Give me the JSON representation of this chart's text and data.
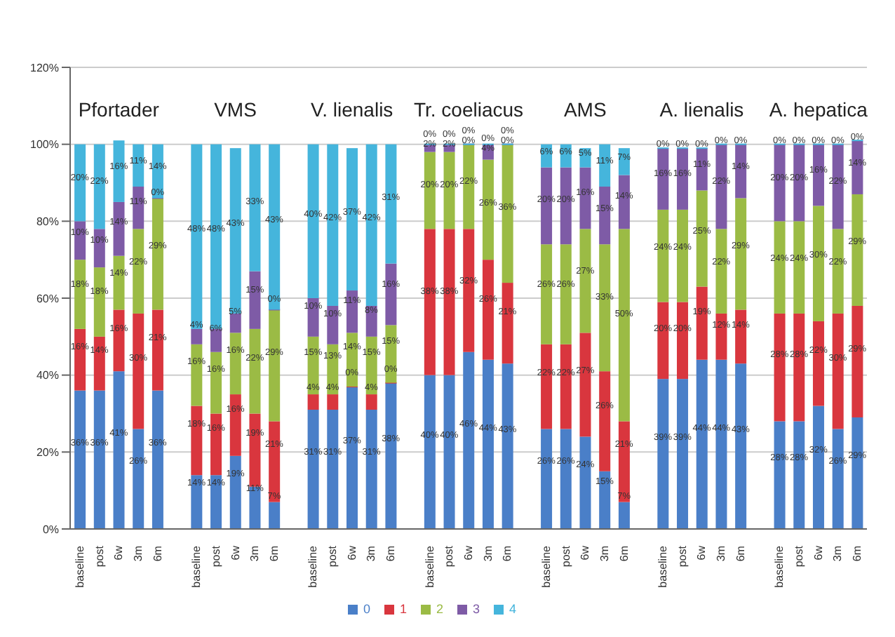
{
  "chart_data": {
    "type": "bar",
    "stacked": true,
    "categories": [
      "baseline",
      "post",
      "6w",
      "3m",
      "6m",
      null,
      "baseline",
      "post",
      "6w",
      "3m",
      "6m",
      null,
      "baseline",
      "post",
      "6w",
      "3m",
      "6m",
      null,
      "baseline",
      "post",
      "6w",
      "3m",
      "6m",
      null,
      "baseline",
      "post",
      "6w",
      "3m",
      "6m",
      null,
      "baseline",
      "post",
      "6w",
      "3m",
      "6m",
      null,
      "baseline",
      "post",
      "6w",
      "3m",
      "6m"
    ],
    "series": [
      {
        "name": "0",
        "color": "#4a7fc8",
        "values": [
          36,
          36,
          41,
          26,
          36,
          null,
          14,
          14,
          19,
          11,
          7,
          null,
          31,
          31,
          37,
          31,
          38,
          null,
          40,
          40,
          46,
          44,
          43,
          null,
          26,
          26,
          24,
          15,
          7,
          null,
          39,
          39,
          44,
          44,
          43,
          null,
          28,
          28,
          32,
          26,
          29
        ],
        "value_labels": [
          "36%",
          "36%",
          "41%",
          "26%",
          "36%",
          null,
          "14%",
          "14%",
          "19%",
          "11%",
          "7%",
          null,
          "31%",
          "31%",
          "37%",
          "31%",
          "38%",
          null,
          "40%",
          "40%",
          "46%",
          "44%",
          "43%",
          null,
          "26%",
          "26%",
          "24%",
          "15%",
          "7%",
          null,
          "39%",
          "39%",
          "44%",
          "44%",
          "43%",
          null,
          "28%",
          "28%",
          "32%",
          "26%",
          "29%"
        ]
      },
      {
        "name": "1",
        "color": "#d9363e",
        "values": [
          16,
          14,
          16,
          30,
          21,
          null,
          18,
          16,
          16,
          19,
          21,
          null,
          4,
          4,
          0,
          4,
          0,
          null,
          38,
          38,
          32,
          26,
          21,
          null,
          22,
          22,
          27,
          26,
          21,
          null,
          20,
          20,
          19,
          12,
          14,
          null,
          28,
          28,
          22,
          30,
          29
        ],
        "value_labels": [
          "16%",
          "14%",
          "16%",
          "30%",
          "21%",
          null,
          "18%",
          "16%",
          "16%",
          "19%",
          "21%",
          null,
          "4%",
          "4%",
          "0%",
          "4%",
          "0%",
          null,
          "38%",
          "38%",
          "32%",
          "26%",
          "21%",
          null,
          "22%",
          "22%",
          "27%",
          "26%",
          "21%",
          null,
          "20%",
          "20%",
          "19%",
          "12%",
          "14%",
          null,
          "28%",
          "28%",
          "22%",
          "30%",
          "29%"
        ]
      },
      {
        "name": "2",
        "color": "#9bbb45",
        "values": [
          18,
          18,
          14,
          22,
          29,
          null,
          16,
          16,
          16,
          22,
          29,
          null,
          15,
          13,
          14,
          15,
          15,
          null,
          20,
          20,
          22,
          26,
          36,
          null,
          26,
          26,
          27,
          33,
          50,
          null,
          24,
          24,
          25,
          22,
          29,
          null,
          24,
          24,
          30,
          22,
          29
        ],
        "value_labels": [
          "18%",
          "18%",
          "14%",
          "22%",
          "29%",
          null,
          "16%",
          "16%",
          "16%",
          "22%",
          "29%",
          null,
          "15%",
          "13%",
          "14%",
          "15%",
          "15%",
          null,
          "20%",
          "20%",
          "22%",
          "26%",
          "36%",
          null,
          "26%",
          "26%",
          "27%",
          "33%",
          "50%",
          null,
          "24%",
          "24%",
          "25%",
          "22%",
          "29%",
          null,
          "24%",
          "24%",
          "30%",
          "22%",
          "29%"
        ]
      },
      {
        "name": "3",
        "color": "#7e5ba6",
        "values": [
          10,
          10,
          14,
          11,
          0,
          null,
          4,
          6,
          5,
          15,
          0,
          null,
          10,
          10,
          11,
          8,
          16,
          null,
          2,
          2,
          0,
          4,
          0,
          null,
          20,
          20,
          16,
          15,
          14,
          null,
          16,
          16,
          11,
          22,
          14,
          null,
          20,
          20,
          16,
          22,
          14
        ],
        "value_labels": [
          "10%",
          "10%",
          "14%",
          "11%",
          "0%",
          null,
          "4%",
          "6%",
          "5%",
          "15%",
          "0%",
          null,
          "10%",
          "10%",
          "11%",
          "8%",
          "16%",
          null,
          "2%",
          "2%",
          "0%",
          "4%",
          "0%",
          null,
          "20%",
          "20%",
          "16%",
          "15%",
          "14%",
          null,
          "16%",
          "16%",
          "11%",
          "22%",
          "14%",
          null,
          "20%",
          "20%",
          "16%",
          "22%",
          "14%"
        ]
      },
      {
        "name": "4",
        "color": "#45b5dc",
        "values": [
          20,
          22,
          16,
          11,
          14,
          null,
          48,
          48,
          43,
          33,
          43,
          null,
          40,
          42,
          37,
          42,
          31,
          null,
          0,
          0,
          0,
          0,
          0,
          null,
          6,
          6,
          5,
          11,
          7,
          null,
          0,
          0,
          0,
          0,
          0,
          null,
          0,
          0,
          0,
          0,
          0
        ],
        "value_labels": [
          "20%",
          "22%",
          "16%",
          "11%",
          "14%",
          null,
          "48%",
          "48%",
          "43%",
          "33%",
          "43%",
          null,
          "40%",
          "42%",
          "37%",
          "42%",
          "31%",
          null,
          "0%",
          "0%",
          "0%",
          "0%",
          "0%",
          null,
          "6%",
          "6%",
          "5%",
          "11%",
          "7%",
          null,
          "0%",
          "0%",
          "0%",
          "0%",
          "0%",
          null,
          "0%",
          "0%",
          "0%",
          "0%",
          "0%"
        ]
      }
    ],
    "annotations": [
      "Pfortader",
      "VMS",
      "V. lienalis",
      "Tr. coeliacus",
      "AMS",
      "A. lienalis",
      "A. hepatica"
    ],
    "ylim": [
      0,
      120
    ],
    "yticks": [
      {
        "value": 0,
        "label": "0%"
      },
      {
        "value": 20,
        "label": "20%"
      },
      {
        "value": 40,
        "label": "40%"
      },
      {
        "value": 60,
        "label": "60%"
      },
      {
        "value": 80,
        "label": "80%"
      },
      {
        "value": 100,
        "label": "100%"
      },
      {
        "value": 120,
        "label": "120%"
      }
    ],
    "grid": "y",
    "legend": "bottom"
  }
}
